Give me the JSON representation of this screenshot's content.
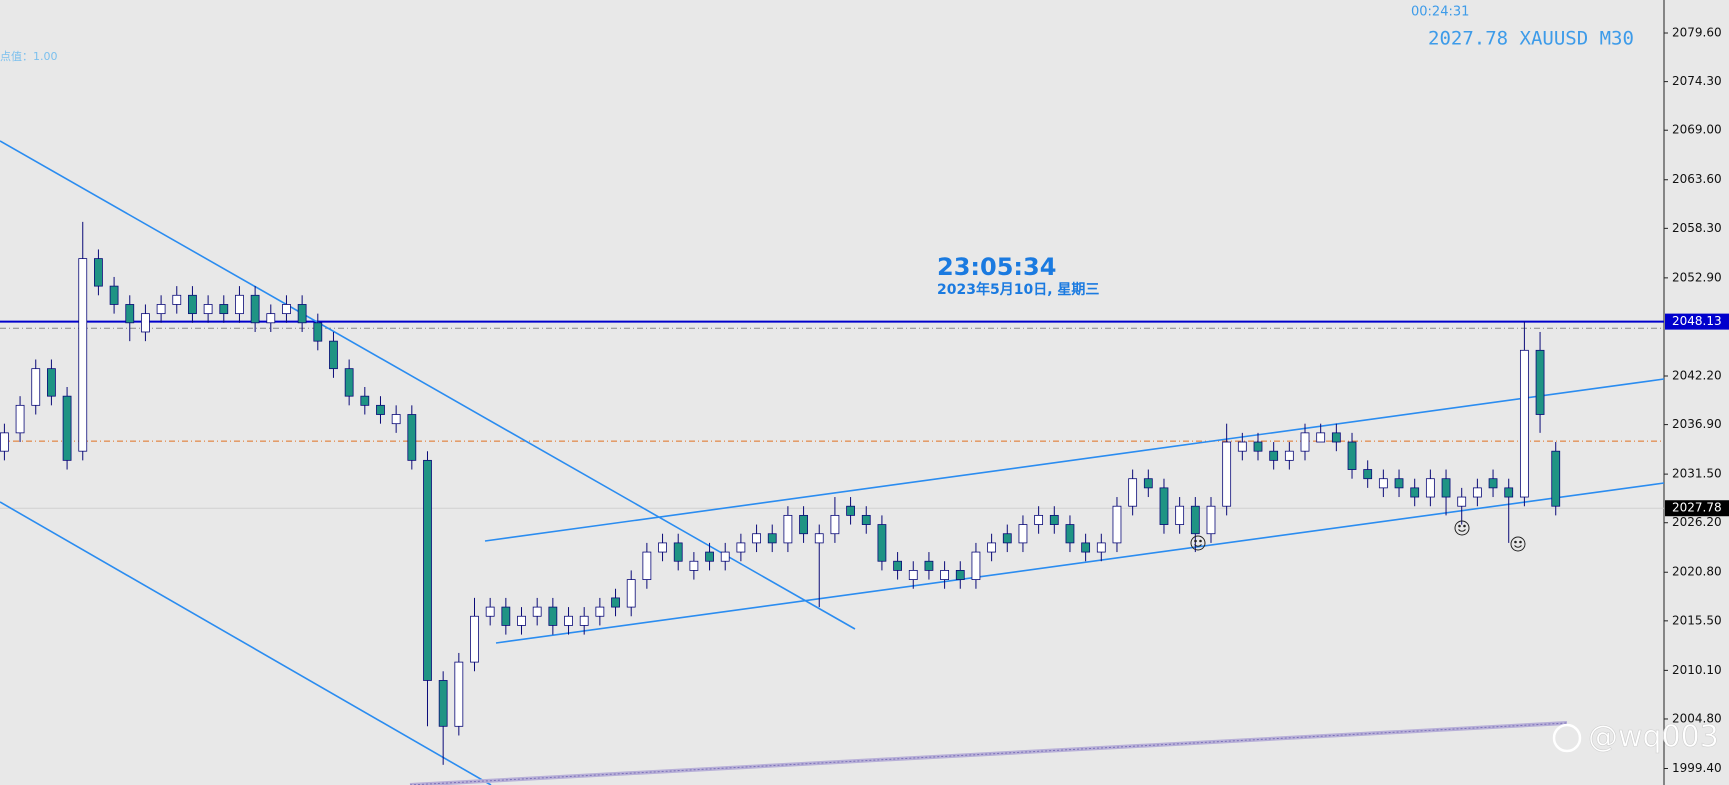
{
  "chart_data": {
    "type": "candlestick",
    "symbol_header": "2027.78 XAUUSD M30",
    "countdown": "00:24:31",
    "point_value": "点值：1.00",
    "clock": "23:05:34",
    "date": "2023年5月10日, 星期三",
    "watermark": "@wq003",
    "up_color": "#ffffff",
    "down_color": "#1f9484",
    "wick_color": "#0a0a78",
    "ylim": [
      1997.6,
      2083.2
    ],
    "yticks": [
      {
        "value": 2079.6,
        "label": "2079.60"
      },
      {
        "value": 2074.3,
        "label": "2074.30"
      },
      {
        "value": 2069.0,
        "label": "2069.00"
      },
      {
        "value": 2063.6,
        "label": "2063.60"
      },
      {
        "value": 2058.3,
        "label": "2058.30"
      },
      {
        "value": 2052.9,
        "label": "2052.90"
      },
      {
        "value": 2042.2,
        "label": "2042.20"
      },
      {
        "value": 2036.9,
        "label": "2036.90"
      },
      {
        "value": 2031.5,
        "label": "2031.50"
      },
      {
        "value": 2026.2,
        "label": "2026.20"
      },
      {
        "value": 2020.8,
        "label": "2020.80"
      },
      {
        "value": 2015.5,
        "label": "2015.50"
      },
      {
        "value": 2010.1,
        "label": "2010.10"
      },
      {
        "value": 2004.8,
        "label": "2004.80"
      },
      {
        "value": 1999.4,
        "label": "1999.40"
      }
    ],
    "price_tags": [
      {
        "value": 2048.13,
        "color": "#0000cc",
        "style": "solid"
      },
      {
        "value": 2027.78,
        "color": "#000000",
        "style": "thin"
      }
    ],
    "levels": [
      {
        "value": 2047.4,
        "color": "#888888"
      },
      {
        "value": 2035.1,
        "color": "#e07020"
      }
    ],
    "open": [
      2034,
      2036,
      2039,
      2043,
      2040,
      2034,
      2055,
      2052,
      2050,
      2047,
      2049,
      2050,
      2051,
      2049,
      2050,
      2049,
      2051,
      2048,
      2049,
      2050,
      2048,
      2046,
      2043,
      2040,
      2039,
      2037,
      2038,
      2033,
      2009,
      2004,
      2011,
      2016,
      2017,
      2015,
      2016,
      2017,
      2015,
      2015,
      2016,
      2018,
      2017,
      2020,
      2023,
      2024,
      2021,
      2023,
      2022,
      2023,
      2024,
      2025,
      2024,
      2027,
      2024,
      2025,
      2028,
      2027,
      2026,
      2022,
      2020,
      2022,
      2020,
      2021,
      2020,
      2023,
      2025,
      2024,
      2026,
      2027,
      2026,
      2024,
      2023,
      2024,
      2028,
      2031,
      2030,
      2026,
      2028,
      2025,
      2028,
      2034,
      2035,
      2034,
      2033,
      2034,
      2035,
      2036,
      2035,
      2032,
      2030,
      2031,
      2030,
      2029,
      2031,
      2028,
      2029,
      2031,
      2030,
      2029,
      2045,
      2034
    ],
    "high": [
      2037,
      2040,
      2044,
      2044,
      2041,
      2059,
      2056,
      2053,
      2051,
      2050,
      2051,
      2052,
      2052,
      2051,
      2051,
      2052,
      2052,
      2050,
      2051,
      2051,
      2049,
      2047,
      2044,
      2041,
      2040,
      2039,
      2039,
      2034,
      2010,
      2012,
      2018,
      2018,
      2018,
      2017,
      2018,
      2018,
      2017,
      2017,
      2018,
      2019,
      2021,
      2024,
      2025,
      2025,
      2023,
      2024,
      2024,
      2025,
      2026,
      2026,
      2028,
      2028,
      2026,
      2029,
      2029,
      2028,
      2027,
      2023,
      2022,
      2023,
      2022,
      2022,
      2024,
      2025,
      2026,
      2027,
      2028,
      2028,
      2027,
      2025,
      2025,
      2029,
      2032,
      2032,
      2031,
      2029,
      2029,
      2029,
      2037,
      2036,
      2036,
      2035,
      2035,
      2037,
      2037,
      2037,
      2036,
      2033,
      2032,
      2032,
      2031,
      2032,
      2032,
      2030,
      2031,
      2032,
      2031,
      2048.13,
      2047,
      2035
    ],
    "low": [
      2033,
      2035,
      2038,
      2039,
      2032,
      2033,
      2051,
      2049,
      2046,
      2046,
      2048,
      2049,
      2048,
      2048,
      2048,
      2048,
      2047,
      2047,
      2048,
      2047,
      2045,
      2042,
      2039,
      2038,
      2037,
      2036,
      2032,
      2004,
      1999.8,
      2003,
      2010,
      2015,
      2014,
      2014,
      2015,
      2014,
      2014,
      2014,
      2015,
      2016,
      2016,
      2019,
      2022,
      2021,
      2020,
      2021,
      2021,
      2022,
      2023,
      2023,
      2023,
      2024,
      2017,
      2024,
      2026,
      2025,
      2021,
      2020,
      2019,
      2020,
      2019,
      2019,
      2019,
      2022,
      2023,
      2023,
      2025,
      2025,
      2023,
      2022,
      2022,
      2023,
      2027,
      2029,
      2025,
      2025,
      2023,
      2024,
      2027,
      2033,
      2033,
      2032,
      2032,
      2033,
      2035,
      2034,
      2031,
      2030,
      2029,
      2029,
      2028,
      2028,
      2027,
      2026,
      2028,
      2029,
      2024,
      2028,
      2036,
      2027
    ],
    "close": [
      2036,
      2039,
      2043,
      2040,
      2033,
      2055,
      2052,
      2050,
      2048,
      2049,
      2050,
      2051,
      2049,
      2050,
      2049,
      2051,
      2048,
      2049,
      2050,
      2048,
      2046,
      2043,
      2040,
      2039,
      2038,
      2038,
      2033,
      2009,
      2004,
      2011,
      2016,
      2017,
      2015,
      2016,
      2017,
      2015,
      2016,
      2016,
      2017,
      2017,
      2020,
      2023,
      2024,
      2022,
      2022,
      2022,
      2023,
      2024,
      2025,
      2024,
      2027,
      2025,
      2025,
      2027,
      2027,
      2026,
      2022,
      2021,
      2021,
      2021,
      2021,
      2020,
      2023,
      2024,
      2024,
      2026,
      2027,
      2026,
      2024,
      2023,
      2024,
      2028,
      2031,
      2030,
      2026,
      2028,
      2025,
      2028,
      2035,
      2035,
      2034,
      2033,
      2034,
      2036,
      2036,
      2035,
      2032,
      2031,
      2031,
      2030,
      2029,
      2031,
      2029,
      2029,
      2030,
      2030,
      2029,
      2045,
      2038,
      2028
    ]
  }
}
